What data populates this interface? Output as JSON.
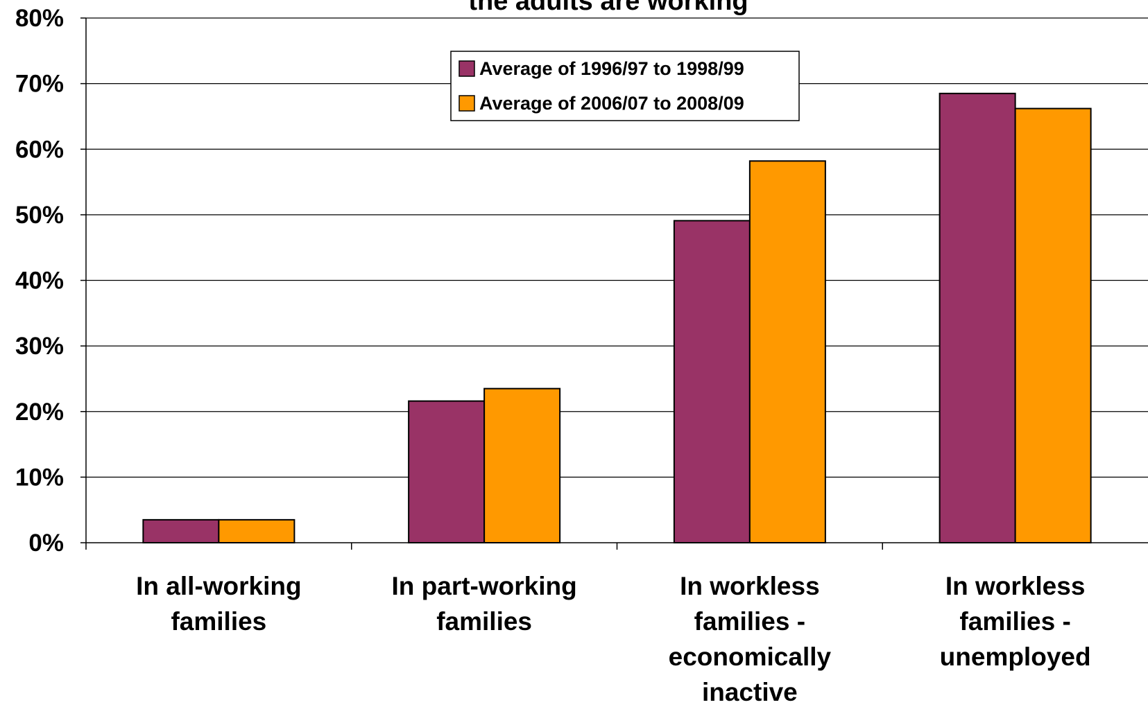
{
  "chart_data": {
    "type": "bar",
    "title": "the adults are working",
    "categories": [
      [
        "In all-working",
        "families"
      ],
      [
        "In part-working",
        "families"
      ],
      [
        "In workless",
        "families -",
        "economically",
        "inactive"
      ],
      [
        "In workless",
        "families -",
        "unemployed"
      ]
    ],
    "series": [
      {
        "name": "Average of 1996/97 to 1998/99",
        "values": [
          3.5,
          21.6,
          49.1,
          68.5
        ],
        "color": "#993366"
      },
      {
        "name": "Average of 2006/07 to 2008/09",
        "values": [
          3.5,
          23.5,
          58.2,
          66.2
        ],
        "color": "#FF9900"
      }
    ],
    "ylim": [
      0,
      80
    ],
    "yticks": [
      0,
      10,
      20,
      30,
      40,
      50,
      60,
      70,
      80
    ],
    "ytick_labels": [
      "0%",
      "10%",
      "20%",
      "30%",
      "40%",
      "50%",
      "60%",
      "70%",
      "80%"
    ],
    "grid": true,
    "legend_position": "top-center"
  }
}
